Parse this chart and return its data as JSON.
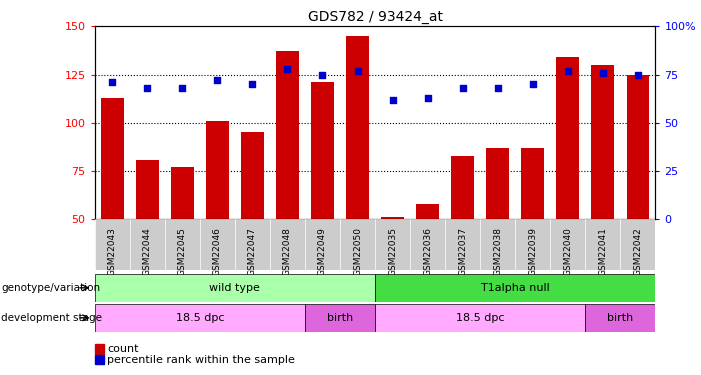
{
  "title": "GDS782 / 93424_at",
  "samples": [
    "GSM22043",
    "GSM22044",
    "GSM22045",
    "GSM22046",
    "GSM22047",
    "GSM22048",
    "GSM22049",
    "GSM22050",
    "GSM22035",
    "GSM22036",
    "GSM22037",
    "GSM22038",
    "GSM22039",
    "GSM22040",
    "GSM22041",
    "GSM22042"
  ],
  "bar_values": [
    113,
    81,
    77,
    101,
    95,
    137,
    121,
    145,
    51,
    58,
    83,
    87,
    87,
    134,
    130,
    125
  ],
  "dot_values": [
    71,
    68,
    68,
    72,
    70,
    78,
    75,
    77,
    62,
    63,
    68,
    68,
    70,
    77,
    76,
    75
  ],
  "ylim_left": [
    50,
    150
  ],
  "ylim_right": [
    0,
    100
  ],
  "yticks_left": [
    50,
    75,
    100,
    125,
    150
  ],
  "yticks_right": [
    0,
    25,
    50,
    75,
    100
  ],
  "bar_color": "#cc0000",
  "dot_color": "#0000cc",
  "tick_area_color": "#cccccc",
  "genotype_groups": [
    {
      "label": "wild type",
      "start": 0,
      "end": 8,
      "color": "#aaffaa"
    },
    {
      "label": "T1alpha null",
      "start": 8,
      "end": 16,
      "color": "#44dd44"
    }
  ],
  "stage_groups": [
    {
      "label": "18.5 dpc",
      "start": 0,
      "end": 6,
      "color": "#ffaaff"
    },
    {
      "label": "birth",
      "start": 6,
      "end": 8,
      "color": "#dd66dd"
    },
    {
      "label": "18.5 dpc",
      "start": 8,
      "end": 14,
      "color": "#ffaaff"
    },
    {
      "label": "birth",
      "start": 14,
      "end": 16,
      "color": "#dd66dd"
    }
  ],
  "legend_items": [
    {
      "label": "count",
      "color": "#cc0000"
    },
    {
      "label": "percentile rank within the sample",
      "color": "#0000cc"
    }
  ]
}
